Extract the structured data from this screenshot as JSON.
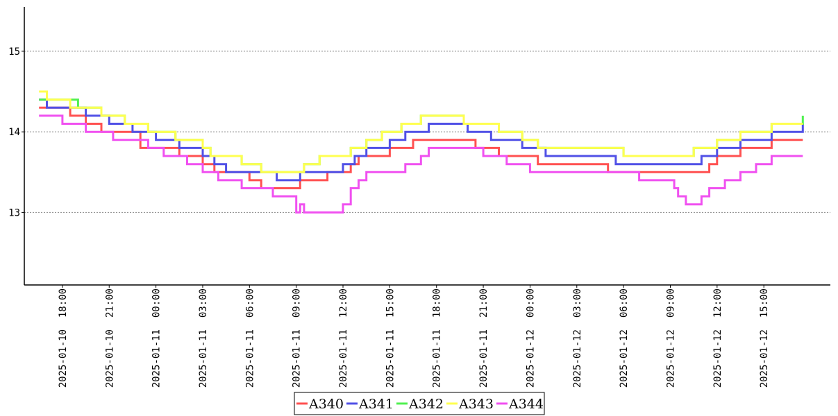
{
  "chart_data": {
    "type": "line",
    "title": "",
    "xlabel": "",
    "ylabel": "",
    "ylim": [
      12.1,
      15.55
    ],
    "xlim": [
      "2025-01-10 16:00",
      "2025-01-12 19:00"
    ],
    "grid": {
      "y": true,
      "x": false,
      "style": "dotted"
    },
    "legend_position": "bottom-center",
    "y_ticks": [
      13,
      14,
      15
    ],
    "x_tick_labels": [
      "2025-01-10  18:00",
      "2025-01-10  21:00",
      "2025-01-11  00:00",
      "2025-01-11  03:00",
      "2025-01-11  06:00",
      "2025-01-11  09:00",
      "2025-01-11  12:00",
      "2025-01-11  15:00",
      "2025-01-11  18:00",
      "2025-01-11  21:00",
      "2025-01-12  00:00",
      "2025-01-12  03:00",
      "2025-01-12  06:00",
      "2025-01-12  09:00",
      "2025-01-12  12:00",
      "2025-01-12  15:00"
    ],
    "x_tick_times": [
      "2025-01-10 18:00",
      "2025-01-10 21:00",
      "2025-01-11 00:00",
      "2025-01-11 03:00",
      "2025-01-11 06:00",
      "2025-01-11 09:00",
      "2025-01-11 12:00",
      "2025-01-11 15:00",
      "2025-01-11 18:00",
      "2025-01-11 21:00",
      "2025-01-12 00:00",
      "2025-01-12 03:00",
      "2025-01-12 06:00",
      "2025-01-12 09:00",
      "2025-01-12 12:00",
      "2025-01-12 15:00"
    ],
    "series": [
      {
        "name": "A340",
        "color": "#ff5050",
        "points": [
          [
            "2025-01-10 16:30",
            14.3
          ],
          [
            "2025-01-10 18:30",
            14.2
          ],
          [
            "2025-01-10 19:30",
            14.1
          ],
          [
            "2025-01-10 20:30",
            14.0
          ],
          [
            "2025-01-10 23:00",
            13.8
          ],
          [
            "2025-01-11 01:30",
            13.7
          ],
          [
            "2025-01-11 03:00",
            13.6
          ],
          [
            "2025-01-11 03:45",
            13.5
          ],
          [
            "2025-01-11 06:00",
            13.4
          ],
          [
            "2025-01-11 06:45",
            13.3
          ],
          [
            "2025-01-11 09:15",
            13.4
          ],
          [
            "2025-01-11 11:00",
            13.5
          ],
          [
            "2025-01-11 12:30",
            13.6
          ],
          [
            "2025-01-11 13:00",
            13.7
          ],
          [
            "2025-01-11 15:00",
            13.8
          ],
          [
            "2025-01-11 16:30",
            13.9
          ],
          [
            "2025-01-11 19:00",
            13.9
          ],
          [
            "2025-01-11 20:30",
            13.8
          ],
          [
            "2025-01-11 22:00",
            13.7
          ],
          [
            "2025-01-12 00:30",
            13.6
          ],
          [
            "2025-01-12 05:00",
            13.5
          ],
          [
            "2025-01-12 07:00",
            13.5
          ],
          [
            "2025-01-12 10:30",
            13.5
          ],
          [
            "2025-01-12 11:30",
            13.6
          ],
          [
            "2025-01-12 12:00",
            13.7
          ],
          [
            "2025-01-12 13:30",
            13.8
          ],
          [
            "2025-01-12 15:30",
            13.9
          ],
          [
            "2025-01-12 17:30",
            13.9
          ]
        ]
      },
      {
        "name": "A341",
        "color": "#5050e6",
        "points": [
          [
            "2025-01-10 16:30",
            14.4
          ],
          [
            "2025-01-10 17:00",
            14.3
          ],
          [
            "2025-01-10 19:30",
            14.2
          ],
          [
            "2025-01-10 21:00",
            14.1
          ],
          [
            "2025-01-10 22:30",
            14.0
          ],
          [
            "2025-01-11 00:00",
            13.9
          ],
          [
            "2025-01-11 01:30",
            13.8
          ],
          [
            "2025-01-11 03:00",
            13.7
          ],
          [
            "2025-01-11 03:45",
            13.6
          ],
          [
            "2025-01-11 04:30",
            13.5
          ],
          [
            "2025-01-11 07:45",
            13.4
          ],
          [
            "2025-01-11 09:15",
            13.5
          ],
          [
            "2025-01-11 12:00",
            13.6
          ],
          [
            "2025-01-11 12:45",
            13.7
          ],
          [
            "2025-01-11 13:30",
            13.8
          ],
          [
            "2025-01-11 15:00",
            13.9
          ],
          [
            "2025-01-11 16:00",
            14.0
          ],
          [
            "2025-01-11 17:30",
            14.1
          ],
          [
            "2025-01-11 20:00",
            14.0
          ],
          [
            "2025-01-11 21:30",
            13.9
          ],
          [
            "2025-01-11 23:30",
            13.8
          ],
          [
            "2025-01-12 01:00",
            13.7
          ],
          [
            "2025-01-12 05:30",
            13.6
          ],
          [
            "2025-01-12 10:00",
            13.6
          ],
          [
            "2025-01-12 11:00",
            13.7
          ],
          [
            "2025-01-12 12:00",
            13.8
          ],
          [
            "2025-01-12 13:30",
            13.9
          ],
          [
            "2025-01-12 15:30",
            14.0
          ],
          [
            "2025-01-12 17:30",
            14.1
          ]
        ]
      },
      {
        "name": "A342",
        "color": "#50f050",
        "points": [
          [
            "2025-01-10 16:30",
            14.4
          ],
          [
            "2025-01-10 19:00",
            14.3
          ],
          [
            "2025-01-10 20:30",
            14.2
          ],
          [
            "2025-01-10 22:00",
            14.1
          ],
          [
            "2025-01-10 23:30",
            14.0
          ],
          [
            "2025-01-11 01:15",
            13.9
          ],
          [
            "2025-01-11 03:00",
            13.8
          ],
          [
            "2025-01-11 03:30",
            13.7
          ],
          [
            "2025-01-11 05:30",
            13.6
          ],
          [
            "2025-01-11 06:45",
            13.5
          ],
          [
            "2025-01-11 09:30",
            13.6
          ],
          [
            "2025-01-11 10:30",
            13.7
          ],
          [
            "2025-01-11 12:30",
            13.8
          ],
          [
            "2025-01-11 13:30",
            13.9
          ],
          [
            "2025-01-11 14:30",
            14.0
          ],
          [
            "2025-01-11 15:45",
            14.1
          ],
          [
            "2025-01-11 17:00",
            14.2
          ],
          [
            "2025-01-11 19:45",
            14.1
          ],
          [
            "2025-01-11 22:00",
            14.0
          ],
          [
            "2025-01-11 23:30",
            13.9
          ],
          [
            "2025-01-12 00:30",
            13.8
          ],
          [
            "2025-01-12 06:00",
            13.7
          ],
          [
            "2025-01-12 10:30",
            13.8
          ],
          [
            "2025-01-12 12:00",
            13.9
          ],
          [
            "2025-01-12 13:30",
            14.0
          ],
          [
            "2025-01-12 15:30",
            14.1
          ],
          [
            "2025-01-12 17:30",
            14.2
          ]
        ]
      },
      {
        "name": "A343",
        "color": "#ffff50",
        "points": [
          [
            "2025-01-10 16:30",
            14.5
          ],
          [
            "2025-01-10 17:00",
            14.4
          ],
          [
            "2025-01-10 18:30",
            14.3
          ],
          [
            "2025-01-10 20:30",
            14.2
          ],
          [
            "2025-01-10 22:00",
            14.1
          ],
          [
            "2025-01-10 23:30",
            14.0
          ],
          [
            "2025-01-11 01:15",
            13.9
          ],
          [
            "2025-01-11 03:00",
            13.8
          ],
          [
            "2025-01-11 03:30",
            13.7
          ],
          [
            "2025-01-11 05:30",
            13.6
          ],
          [
            "2025-01-11 06:45",
            13.5
          ],
          [
            "2025-01-11 09:30",
            13.6
          ],
          [
            "2025-01-11 10:30",
            13.7
          ],
          [
            "2025-01-11 12:30",
            13.8
          ],
          [
            "2025-01-11 13:30",
            13.9
          ],
          [
            "2025-01-11 14:30",
            14.0
          ],
          [
            "2025-01-11 15:45",
            14.1
          ],
          [
            "2025-01-11 17:00",
            14.2
          ],
          [
            "2025-01-11 19:45",
            14.1
          ],
          [
            "2025-01-11 22:00",
            14.0
          ],
          [
            "2025-01-11 23:30",
            13.9
          ],
          [
            "2025-01-12 00:30",
            13.8
          ],
          [
            "2025-01-12 06:00",
            13.7
          ],
          [
            "2025-01-12 10:30",
            13.8
          ],
          [
            "2025-01-12 12:00",
            13.9
          ],
          [
            "2025-01-12 13:30",
            14.0
          ],
          [
            "2025-01-12 15:30",
            14.1
          ],
          [
            "2025-01-12 17:30",
            14.1
          ]
        ]
      },
      {
        "name": "A344",
        "color": "#f050f0",
        "points": [
          [
            "2025-01-10 16:30",
            14.2
          ],
          [
            "2025-01-10 17:30",
            14.2
          ],
          [
            "2025-01-10 18:00",
            14.1
          ],
          [
            "2025-01-10 19:30",
            14.0
          ],
          [
            "2025-01-10 21:15",
            13.9
          ],
          [
            "2025-01-10 23:30",
            13.8
          ],
          [
            "2025-01-11 00:30",
            13.7
          ],
          [
            "2025-01-11 02:00",
            13.6
          ],
          [
            "2025-01-11 03:00",
            13.5
          ],
          [
            "2025-01-11 04:00",
            13.4
          ],
          [
            "2025-01-11 05:30",
            13.3
          ],
          [
            "2025-01-11 07:30",
            13.2
          ],
          [
            "2025-01-11 08:45",
            13.2
          ],
          [
            "2025-01-11 09:00",
            13.0
          ],
          [
            "2025-01-11 09:15",
            13.1
          ],
          [
            "2025-01-11 09:30",
            13.0
          ],
          [
            "2025-01-11 12:00",
            13.1
          ],
          [
            "2025-01-11 12:30",
            13.3
          ],
          [
            "2025-01-11 13:00",
            13.4
          ],
          [
            "2025-01-11 13:30",
            13.5
          ],
          [
            "2025-01-11 16:00",
            13.6
          ],
          [
            "2025-01-11 17:00",
            13.7
          ],
          [
            "2025-01-11 17:30",
            13.8
          ],
          [
            "2025-01-11 20:00",
            13.8
          ],
          [
            "2025-01-11 21:00",
            13.7
          ],
          [
            "2025-01-11 22:30",
            13.6
          ],
          [
            "2025-01-12 00:00",
            13.5
          ],
          [
            "2025-01-12 06:30",
            13.5
          ],
          [
            "2025-01-12 07:00",
            13.4
          ],
          [
            "2025-01-12 09:15",
            13.3
          ],
          [
            "2025-01-12 09:30",
            13.2
          ],
          [
            "2025-01-12 10:00",
            13.1
          ],
          [
            "2025-01-12 11:00",
            13.2
          ],
          [
            "2025-01-12 11:30",
            13.3
          ],
          [
            "2025-01-12 12:30",
            13.4
          ],
          [
            "2025-01-12 13:30",
            13.5
          ],
          [
            "2025-01-12 14:30",
            13.6
          ],
          [
            "2025-01-12 15:30",
            13.7
          ],
          [
            "2025-01-12 17:30",
            13.7
          ]
        ]
      }
    ]
  }
}
